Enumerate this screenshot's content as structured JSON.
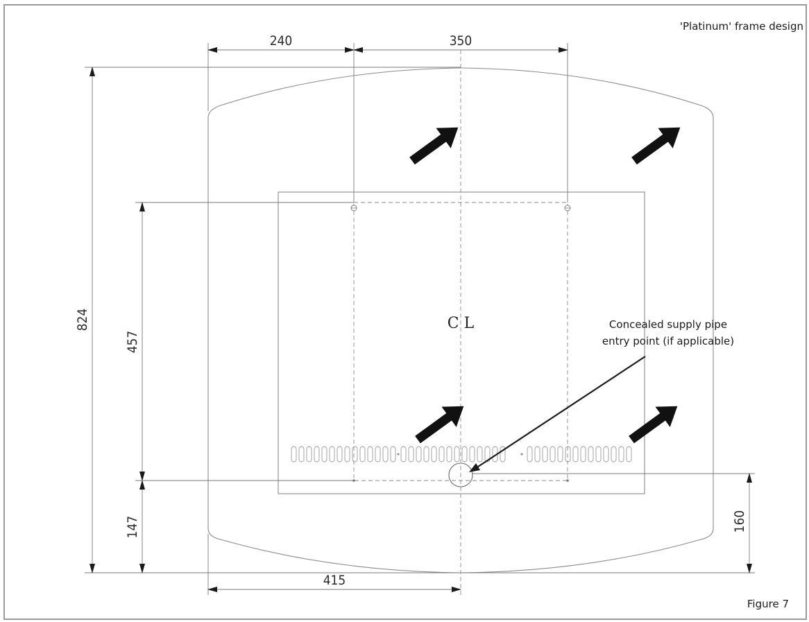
{
  "header_label": "'Platinum' frame design",
  "figure_label": "Figure 7",
  "centerline_label": "C L",
  "callout": {
    "line1": "Concealed supply pipe",
    "line2": "entry point (if applicable)"
  },
  "dimensions": {
    "top_left_width": "240",
    "top_right_width": "350",
    "overall_height": "824",
    "fixing_height": "457",
    "lower_height": "147",
    "pipe_height": "160",
    "centre_offset": "415"
  }
}
